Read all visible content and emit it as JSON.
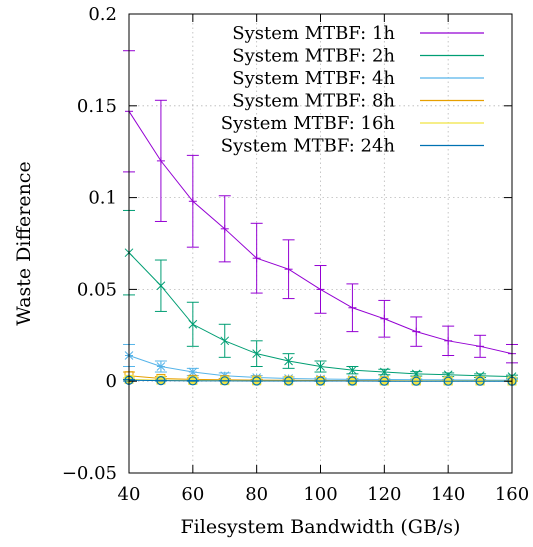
{
  "chart_data": {
    "type": "line",
    "xlabel": "Filesystem Bandwidth (GB/s)",
    "ylabel": "Waste Difference",
    "xlim": [
      40,
      160
    ],
    "ylim": [
      -0.05,
      0.2
    ],
    "xticks": [
      40,
      60,
      80,
      100,
      120,
      140,
      160
    ],
    "xtick_labels": [
      "40",
      "60",
      "80",
      "100",
      "120",
      "140",
      "160"
    ],
    "yticks": [
      -0.05,
      0,
      0.05,
      0.1,
      0.15,
      0.2
    ],
    "ytick_labels": [
      "−0.05",
      "0",
      "0.05",
      "0.1",
      "0.15",
      "0.2"
    ],
    "grid": true,
    "legend_position": "top-right",
    "x": [
      40,
      50,
      60,
      70,
      80,
      90,
      100,
      110,
      120,
      130,
      140,
      150,
      160
    ],
    "series": [
      {
        "name": "System MTBF: 1h",
        "color": "#9400d3",
        "marker": "cross",
        "values": [
          0.147,
          0.12,
          0.098,
          0.083,
          0.067,
          0.061,
          0.05,
          0.04,
          0.034,
          0.027,
          0.022,
          0.019,
          0.015
        ],
        "error": [
          0.033,
          0.033,
          0.025,
          0.018,
          0.019,
          0.016,
          0.013,
          0.013,
          0.01,
          0.008,
          0.008,
          0.006,
          0.005
        ]
      },
      {
        "name": "System MTBF: 2h",
        "color": "#009e73",
        "marker": "x",
        "values": [
          0.07,
          0.052,
          0.031,
          0.022,
          0.015,
          0.011,
          0.008,
          0.006,
          0.005,
          0.004,
          0.0035,
          0.003,
          0.0025
        ],
        "error": [
          0.023,
          0.014,
          0.012,
          0.009,
          0.007,
          0.004,
          0.003,
          0.002,
          0.0015,
          0.0012,
          0.001,
          0.001,
          0.0008
        ]
      },
      {
        "name": "System MTBF: 4h",
        "color": "#56b4e9",
        "marker": "star",
        "values": [
          0.014,
          0.008,
          0.005,
          0.003,
          0.002,
          0.0015,
          0.0012,
          0.001,
          0.0009,
          0.0008,
          0.0007,
          0.0006,
          0.0005
        ],
        "error": [
          0.006,
          0.003,
          0.002,
          0.0015,
          0.001,
          0.0008,
          0.0006,
          0.0005,
          0.0004,
          0.0004,
          0.0003,
          0.0003,
          0.0003
        ]
      },
      {
        "name": "System MTBF: 8h",
        "color": "#e69f00",
        "marker": "square",
        "values": [
          0.003,
          0.0015,
          0.001,
          0.0008,
          0.0006,
          0.0005,
          0.0004,
          0.0003,
          0.0003,
          0.0002,
          0.0002,
          0.0002,
          0.0001
        ],
        "error": [
          0.002,
          0.001,
          0.0008,
          0.0005,
          0.0004,
          0.0003,
          0.0003,
          0.0002,
          0.0002,
          0.0002,
          0.0001,
          0.0001,
          0.0001
        ]
      },
      {
        "name": "System MTBF: 16h",
        "color": "#f0e442",
        "marker": "filled-square",
        "values": [
          0.001,
          0.0006,
          0.0004,
          0.0003,
          0.0002,
          0.0002,
          0.0001,
          0.0001,
          0.0001,
          0.0001,
          0.0001,
          0.0001,
          0.0001
        ],
        "error": [
          0.0008,
          0.0004,
          0.0003,
          0.0002,
          0.0002,
          0.0001,
          0.0001,
          0.0001,
          0.0001,
          0.0001,
          0.0001,
          0.0001,
          0.0001
        ]
      },
      {
        "name": "System MTBF: 24h",
        "color": "#0072b2",
        "marker": "circle",
        "values": [
          0.0005,
          0.0003,
          0.0002,
          0.0002,
          0.0001,
          0.0001,
          0.0001,
          0.0001,
          0,
          0,
          0,
          0,
          0
        ],
        "error": [
          0.0004,
          0.0002,
          0.0002,
          0.0001,
          0.0001,
          0.0001,
          0.0001,
          0.0001,
          0.0001,
          0,
          0,
          0,
          0
        ]
      }
    ]
  }
}
